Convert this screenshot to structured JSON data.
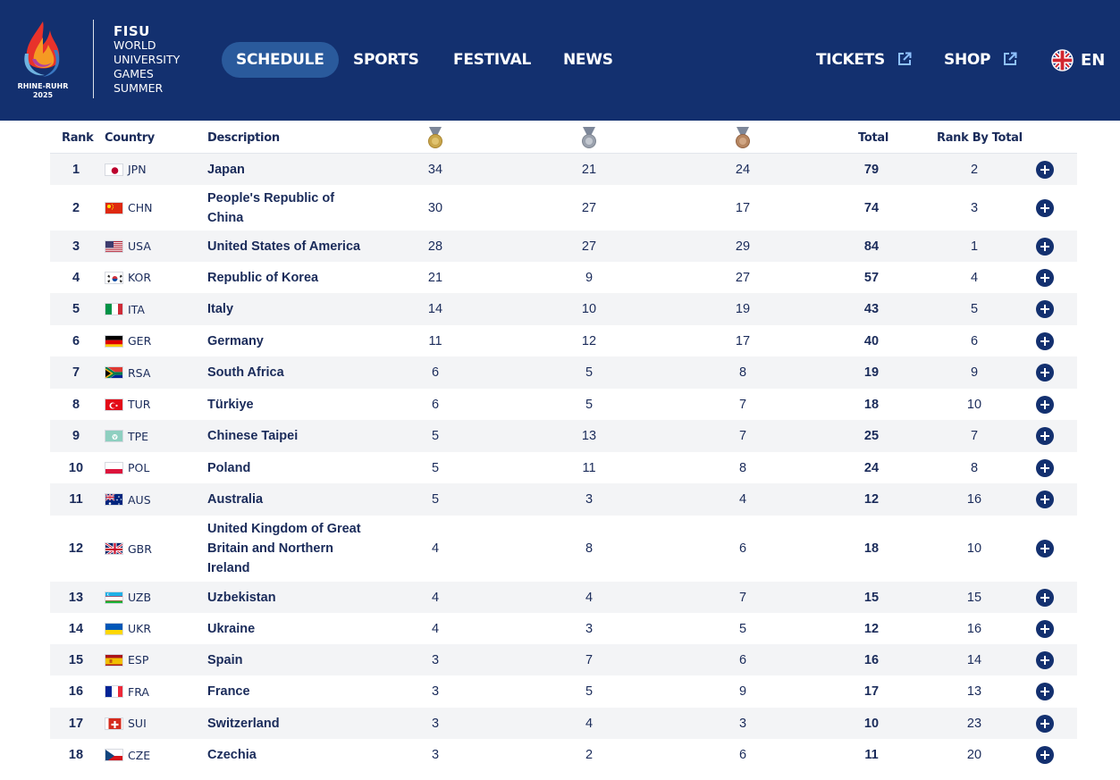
{
  "header": {
    "logo_caption_1": "RHINE-RUHR",
    "logo_caption_2": "2025",
    "brand": {
      "fisu": "FISU",
      "line1": "WORLD",
      "line2": "UNIVERSITY",
      "line3": "GAMES",
      "line4": "SUMMER"
    },
    "nav": {
      "schedule": "SCHEDULE",
      "sports": "SPORTS",
      "festival": "FESTIVAL",
      "news": "NEWS",
      "tickets": "TICKETS",
      "shop": "SHOP",
      "language": "EN"
    },
    "colors": {
      "header_bg": "#13306f",
      "active_pill": "#2a5a9c"
    }
  },
  "table": {
    "headers": {
      "rank": "Rank",
      "country": "Country",
      "description": "Description",
      "total": "Total",
      "rank_by_total": "Rank By Total"
    },
    "medal_icons": [
      "gold-medal-icon",
      "silver-medal-icon",
      "bronze-medal-icon"
    ],
    "rows": [
      {
        "rank": "1",
        "code": "JPN",
        "name": "Japan",
        "gold": "34",
        "silver": "21",
        "bronze": "24",
        "total": "79",
        "rank_by_total": "2"
      },
      {
        "rank": "2",
        "code": "CHN",
        "name": "People's Republic of China",
        "gold": "30",
        "silver": "27",
        "bronze": "17",
        "total": "74",
        "rank_by_total": "3"
      },
      {
        "rank": "3",
        "code": "USA",
        "name": "United States of America",
        "gold": "28",
        "silver": "27",
        "bronze": "29",
        "total": "84",
        "rank_by_total": "1"
      },
      {
        "rank": "4",
        "code": "KOR",
        "name": "Republic of Korea",
        "gold": "21",
        "silver": "9",
        "bronze": "27",
        "total": "57",
        "rank_by_total": "4"
      },
      {
        "rank": "5",
        "code": "ITA",
        "name": "Italy",
        "gold": "14",
        "silver": "10",
        "bronze": "19",
        "total": "43",
        "rank_by_total": "5"
      },
      {
        "rank": "6",
        "code": "GER",
        "name": "Germany",
        "gold": "11",
        "silver": "12",
        "bronze": "17",
        "total": "40",
        "rank_by_total": "6"
      },
      {
        "rank": "7",
        "code": "RSA",
        "name": "South Africa",
        "gold": "6",
        "silver": "5",
        "bronze": "8",
        "total": "19",
        "rank_by_total": "9"
      },
      {
        "rank": "8",
        "code": "TUR",
        "name": "Türkiye",
        "gold": "6",
        "silver": "5",
        "bronze": "7",
        "total": "18",
        "rank_by_total": "10"
      },
      {
        "rank": "9",
        "code": "TPE",
        "name": "Chinese Taipei",
        "gold": "5",
        "silver": "13",
        "bronze": "7",
        "total": "25",
        "rank_by_total": "7"
      },
      {
        "rank": "10",
        "code": "POL",
        "name": "Poland",
        "gold": "5",
        "silver": "11",
        "bronze": "8",
        "total": "24",
        "rank_by_total": "8"
      },
      {
        "rank": "11",
        "code": "AUS",
        "name": "Australia",
        "gold": "5",
        "silver": "3",
        "bronze": "4",
        "total": "12",
        "rank_by_total": "16"
      },
      {
        "rank": "12",
        "code": "GBR",
        "name": "United Kingdom of Great Britain and Northern Ireland",
        "gold": "4",
        "silver": "8",
        "bronze": "6",
        "total": "18",
        "rank_by_total": "10"
      },
      {
        "rank": "13",
        "code": "UZB",
        "name": "Uzbekistan",
        "gold": "4",
        "silver": "4",
        "bronze": "7",
        "total": "15",
        "rank_by_total": "15"
      },
      {
        "rank": "14",
        "code": "UKR",
        "name": "Ukraine",
        "gold": "4",
        "silver": "3",
        "bronze": "5",
        "total": "12",
        "rank_by_total": "16"
      },
      {
        "rank": "15",
        "code": "ESP",
        "name": "Spain",
        "gold": "3",
        "silver": "7",
        "bronze": "6",
        "total": "16",
        "rank_by_total": "14"
      },
      {
        "rank": "16",
        "code": "FRA",
        "name": "France",
        "gold": "3",
        "silver": "5",
        "bronze": "9",
        "total": "17",
        "rank_by_total": "13"
      },
      {
        "rank": "17",
        "code": "SUI",
        "name": "Switzerland",
        "gold": "3",
        "silver": "4",
        "bronze": "3",
        "total": "10",
        "rank_by_total": "23"
      },
      {
        "rank": "18",
        "code": "CZE",
        "name": "Czechia",
        "gold": "3",
        "silver": "2",
        "bronze": "6",
        "total": "11",
        "rank_by_total": "20"
      }
    ]
  }
}
